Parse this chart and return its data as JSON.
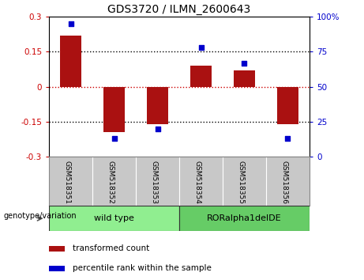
{
  "title": "GDS3720 / ILMN_2600643",
  "samples": [
    "GSM518351",
    "GSM518352",
    "GSM518353",
    "GSM518354",
    "GSM518355",
    "GSM518356"
  ],
  "transformed_count": [
    0.22,
    -0.195,
    -0.16,
    0.09,
    0.07,
    -0.16
  ],
  "percentile_rank": [
    95,
    13,
    20,
    78,
    67,
    13
  ],
  "bar_color": "#aa1111",
  "dot_color": "#0000cc",
  "ylim_left": [
    -0.3,
    0.3
  ],
  "ylim_right": [
    0,
    100
  ],
  "yticks_left": [
    -0.3,
    -0.15,
    0,
    0.15,
    0.3
  ],
  "yticks_right": [
    0,
    25,
    50,
    75,
    100
  ],
  "yticklabels_right": [
    "0",
    "25",
    "50",
    "75",
    "100%"
  ],
  "groups": [
    {
      "label": "wild type",
      "indices": [
        0,
        1,
        2
      ],
      "color": "#90ee90"
    },
    {
      "label": "RORalpha1delDE",
      "indices": [
        3,
        4,
        5
      ],
      "color": "#66cc66"
    }
  ],
  "group_label": "genotype/variation",
  "legend": [
    {
      "label": "transformed count",
      "color": "#aa1111"
    },
    {
      "label": "percentile rank within the sample",
      "color": "#0000cc"
    }
  ],
  "hline_color": "#cc0000",
  "dotted_color": "#000000",
  "tick_area_color": "#c8c8c8",
  "bar_width": 0.5
}
